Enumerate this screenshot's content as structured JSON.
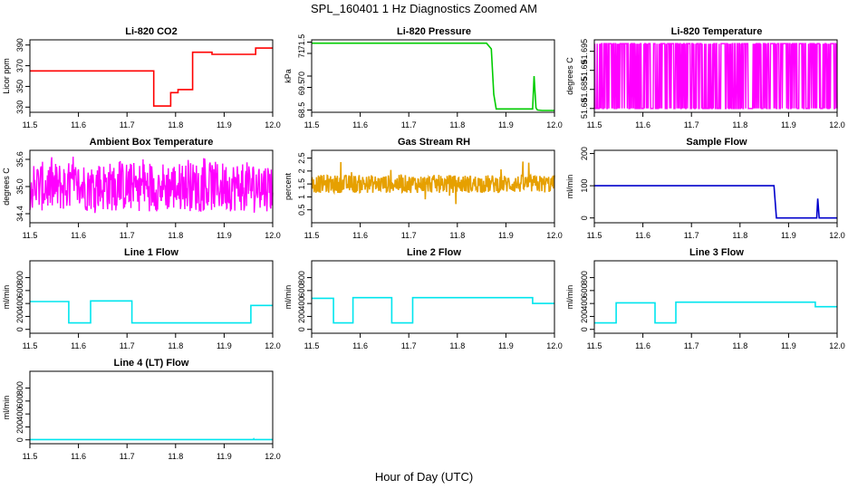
{
  "figure": {
    "title": "SPL_160401  1 Hz Diagnostics Zoomed AM",
    "xlabel": "Hour of Day (UTC)"
  },
  "chart_data": [
    {
      "type": "line",
      "id": "co2",
      "title": "Li-820 CO2",
      "ylabel": "Licor ppm",
      "color": "#ff0000",
      "xlim": [
        11.5,
        12.0
      ],
      "xticks": [
        11.5,
        11.6,
        11.7,
        11.8,
        11.9,
        12.0
      ],
      "ylim": [
        325,
        395
      ],
      "yticks": [
        330,
        350,
        370,
        390
      ],
      "x": [
        11.5,
        11.755,
        11.755,
        11.79,
        11.79,
        11.805,
        11.805,
        11.835,
        11.835,
        11.875,
        11.875,
        11.965,
        11.965,
        12.0
      ],
      "y": [
        365,
        365,
        331,
        331,
        344,
        344,
        347,
        347,
        383,
        383,
        381,
        381,
        387,
        387
      ]
    },
    {
      "type": "line",
      "id": "pressure",
      "title": "Li-820 Pressure",
      "ylabel": "kPa",
      "color": "#00cc00",
      "xlim": [
        11.5,
        12.0
      ],
      "xticks": [
        11.5,
        11.6,
        11.7,
        11.8,
        11.9,
        12.0
      ],
      "ylim": [
        68.4,
        71.6
      ],
      "yticks": [
        68.5,
        69.5,
        70.0,
        71.0,
        71.5
      ],
      "x": [
        11.5,
        11.86,
        11.87,
        11.875,
        11.88,
        11.955,
        11.958,
        11.962,
        11.965,
        11.975,
        12.0
      ],
      "y": [
        71.45,
        71.45,
        71.2,
        69.2,
        68.55,
        68.55,
        70.0,
        68.6,
        68.5,
        68.48,
        68.48
      ]
    },
    {
      "type": "line",
      "id": "temperature",
      "title": "Li-820 Temperature",
      "ylabel": "degrees C",
      "color": "#ff00ff",
      "xlim": [
        11.5,
        12.0
      ],
      "xticks": [
        11.5,
        11.6,
        11.7,
        11.8,
        11.9,
        12.0
      ],
      "ylim": [
        51.679,
        51.698
      ],
      "yticks": [
        51.68,
        51.685,
        51.69,
        51.695
      ],
      "x": [
        11.5,
        11.53,
        11.54,
        11.6,
        11.63,
        11.66,
        11.71,
        11.74,
        11.77,
        11.8,
        11.85,
        11.87,
        11.9,
        11.93,
        11.95,
        12.0
      ],
      "y": [
        51.697,
        51.68,
        51.697,
        51.68,
        51.697,
        51.68,
        51.697,
        51.68,
        51.697,
        51.68,
        51.697,
        51.68,
        51.697,
        51.68,
        51.697,
        51.697
      ]
    },
    {
      "type": "line",
      "id": "ambient",
      "title": "Ambient Box Temperature",
      "ylabel": "degrees C",
      "color": "#ff00ff",
      "xlim": [
        11.5,
        12.0
      ],
      "xticks": [
        11.5,
        11.6,
        11.7,
        11.8,
        11.9,
        12.0
      ],
      "ylim": [
        34.2,
        35.8
      ],
      "yticks": [
        34.4,
        35.0,
        35.6
      ],
      "ytick_labels": [
        "34.4",
        "35.0",
        "35.6"
      ],
      "x": [
        11.5,
        11.55,
        11.6,
        11.65,
        11.7,
        11.75,
        11.8,
        11.85,
        11.9,
        11.95,
        12.0
      ],
      "y": [
        34.9,
        35.2,
        34.8,
        35.1,
        34.9,
        35.0,
        34.8,
        35.1,
        34.9,
        35.0,
        34.9
      ]
    },
    {
      "type": "line",
      "id": "rh",
      "title": "Gas Stream RH",
      "ylabel": "percent",
      "color": "#e6a000",
      "xlim": [
        11.5,
        12.0
      ],
      "xticks": [
        11.5,
        11.6,
        11.7,
        11.8,
        11.9,
        12.0
      ],
      "ylim": [
        0,
        2.8
      ],
      "yticks": [
        0.5,
        1.0,
        1.5,
        2.0,
        2.5
      ],
      "x": [
        11.5,
        11.55,
        11.6,
        11.65,
        11.7,
        11.75,
        11.8,
        11.85,
        11.9,
        11.95,
        12.0
      ],
      "y": [
        1.5,
        1.6,
        1.5,
        1.55,
        1.5,
        1.6,
        1.55,
        1.5,
        1.6,
        1.55,
        1.5
      ]
    },
    {
      "type": "line",
      "id": "sample",
      "title": "Sample Flow",
      "ylabel": "ml/min",
      "color": "#0000cc",
      "xlim": [
        11.5,
        12.0
      ],
      "xticks": [
        11.5,
        11.6,
        11.7,
        11.8,
        11.9,
        12.0
      ],
      "ylim": [
        -15,
        210
      ],
      "yticks": [
        0,
        100,
        200
      ],
      "x": [
        11.5,
        11.87,
        11.875,
        11.958,
        11.96,
        11.963,
        11.965,
        12.0
      ],
      "y": [
        100,
        100,
        0,
        0,
        60,
        0,
        0,
        0
      ]
    },
    {
      "type": "line",
      "id": "line1",
      "title": "Line 1 Flow",
      "ylabel": "ml/min",
      "color": "#00e5ee",
      "xlim": [
        11.5,
        12.0
      ],
      "xticks": [
        11.5,
        11.6,
        11.7,
        11.8,
        11.9,
        12.0
      ],
      "ylim": [
        -60,
        1060
      ],
      "yticks": [
        0,
        200,
        400,
        600,
        800
      ],
      "x": [
        11.5,
        11.58,
        11.58,
        11.625,
        11.625,
        11.71,
        11.71,
        11.955,
        11.955,
        12.0
      ],
      "y": [
        430,
        430,
        100,
        100,
        440,
        440,
        100,
        100,
        370,
        370
      ]
    },
    {
      "type": "line",
      "id": "line2",
      "title": "Line 2 Flow",
      "ylabel": "ml/min",
      "color": "#00e5ee",
      "xlim": [
        11.5,
        12.0
      ],
      "xticks": [
        11.5,
        11.6,
        11.7,
        11.8,
        11.9,
        12.0
      ],
      "ylim": [
        -60,
        1060
      ],
      "yticks": [
        0,
        200,
        400,
        600,
        800
      ],
      "x": [
        11.5,
        11.545,
        11.545,
        11.585,
        11.585,
        11.665,
        11.665,
        11.708,
        11.708,
        11.955,
        11.955,
        12.0
      ],
      "y": [
        480,
        480,
        100,
        100,
        490,
        490,
        100,
        100,
        490,
        490,
        400,
        400
      ]
    },
    {
      "type": "line",
      "id": "line3",
      "title": "Line 3 Flow",
      "ylabel": "ml/min",
      "color": "#00e5ee",
      "xlim": [
        11.5,
        12.0
      ],
      "xticks": [
        11.5,
        11.6,
        11.7,
        11.8,
        11.9,
        12.0
      ],
      "ylim": [
        -60,
        1060
      ],
      "yticks": [
        0,
        200,
        400,
        600,
        800
      ],
      "x": [
        11.5,
        11.545,
        11.545,
        11.625,
        11.625,
        11.668,
        11.668,
        11.955,
        11.955,
        12.0
      ],
      "y": [
        100,
        100,
        410,
        410,
        100,
        100,
        420,
        420,
        350,
        350
      ]
    },
    {
      "type": "line",
      "id": "line4",
      "title": "Line 4 (LT) Flow",
      "ylabel": "ml/min",
      "color": "#00e5ee",
      "xlim": [
        11.5,
        12.0
      ],
      "xticks": [
        11.5,
        11.6,
        11.7,
        11.8,
        11.9,
        12.0
      ],
      "ylim": [
        -60,
        1060
      ],
      "yticks": [
        0,
        200,
        400,
        600,
        800
      ],
      "x": [
        11.5,
        11.96,
        11.961,
        11.962,
        12.0
      ],
      "y": [
        5,
        5,
        15,
        5,
        5
      ]
    }
  ]
}
